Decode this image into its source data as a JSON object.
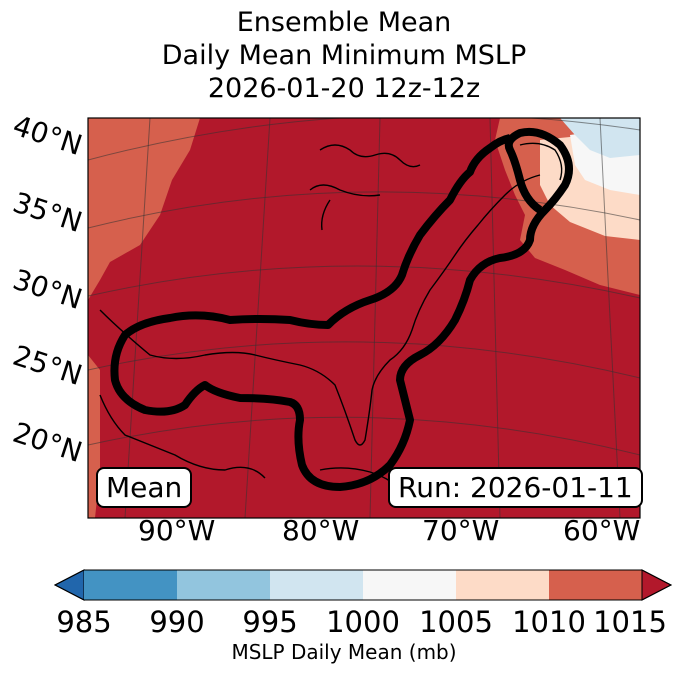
{
  "title": {
    "line1": "Ensemble Mean",
    "line2": "Daily Mean Minimum MSLP",
    "line3": "2026-01-20 12z-12z"
  },
  "map": {
    "lat_labels": [
      "40°N",
      "35°N",
      "30°N",
      "25°N",
      "20°N"
    ],
    "lon_labels": [
      "90°W",
      "80°W",
      "70°W",
      "60°W"
    ],
    "mean_label": "Mean",
    "run_label": "Run: 2026-01-11",
    "fill_colors": {
      "low": "#b2182b",
      "mid": "#d6604d",
      "high": "#fddbc7",
      "neutral": "#f7f7f7",
      "blue": "#d1e5f0"
    },
    "contour_color": "#000000"
  },
  "colorbar": {
    "ticks": [
      "985",
      "990",
      "995",
      "1000",
      "1005",
      "1010",
      "1015"
    ],
    "colors": [
      "#2166ac",
      "#4393c3",
      "#92c5de",
      "#d1e5f0",
      "#f7f7f7",
      "#fddbc7",
      "#d6604d",
      "#b2182b"
    ],
    "label": "MSLP Daily Mean (mb)"
  }
}
